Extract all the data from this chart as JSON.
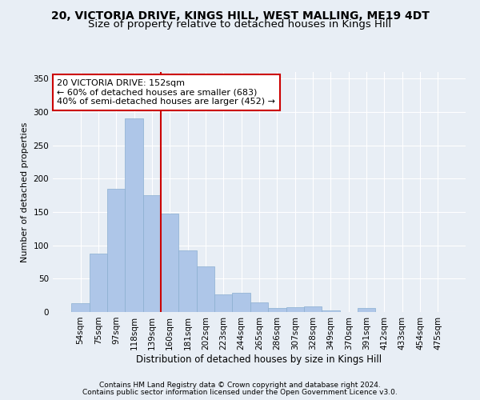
{
  "title1": "20, VICTORIA DRIVE, KINGS HILL, WEST MALLING, ME19 4DT",
  "title2": "Size of property relative to detached houses in Kings Hill",
  "xlabel": "Distribution of detached houses by size in Kings Hill",
  "ylabel": "Number of detached properties",
  "bin_labels": [
    "54sqm",
    "75sqm",
    "97sqm",
    "118sqm",
    "139sqm",
    "160sqm",
    "181sqm",
    "202sqm",
    "223sqm",
    "244sqm",
    "265sqm",
    "286sqm",
    "307sqm",
    "328sqm",
    "349sqm",
    "370sqm",
    "391sqm",
    "412sqm",
    "433sqm",
    "454sqm",
    "475sqm"
  ],
  "bar_values": [
    13,
    88,
    185,
    290,
    175,
    148,
    93,
    68,
    26,
    29,
    14,
    6,
    7,
    9,
    3,
    0,
    6,
    0,
    0,
    0,
    0
  ],
  "bar_color": "#aec6e8",
  "bar_edge_color": "#8aaed0",
  "vline_x": 4.5,
  "annotation_line1": "20 VICTORIA DRIVE: 152sqm",
  "annotation_line2": "← 60% of detached houses are smaller (683)",
  "annotation_line3": "40% of semi-detached houses are larger (452) →",
  "annotation_box_color": "#ffffff",
  "annotation_box_edge": "#cc0000",
  "vline_color": "#cc0000",
  "footer1": "Contains HM Land Registry data © Crown copyright and database right 2024.",
  "footer2": "Contains public sector information licensed under the Open Government Licence v3.0.",
  "ylim": [
    0,
    360
  ],
  "background_color": "#e8eef5",
  "grid_color": "#ffffff",
  "title1_fontsize": 10,
  "title2_fontsize": 9.5,
  "xlabel_fontsize": 8.5,
  "ylabel_fontsize": 8,
  "tick_fontsize": 7.5,
  "annotation_fontsize": 8,
  "footer_fontsize": 6.5
}
